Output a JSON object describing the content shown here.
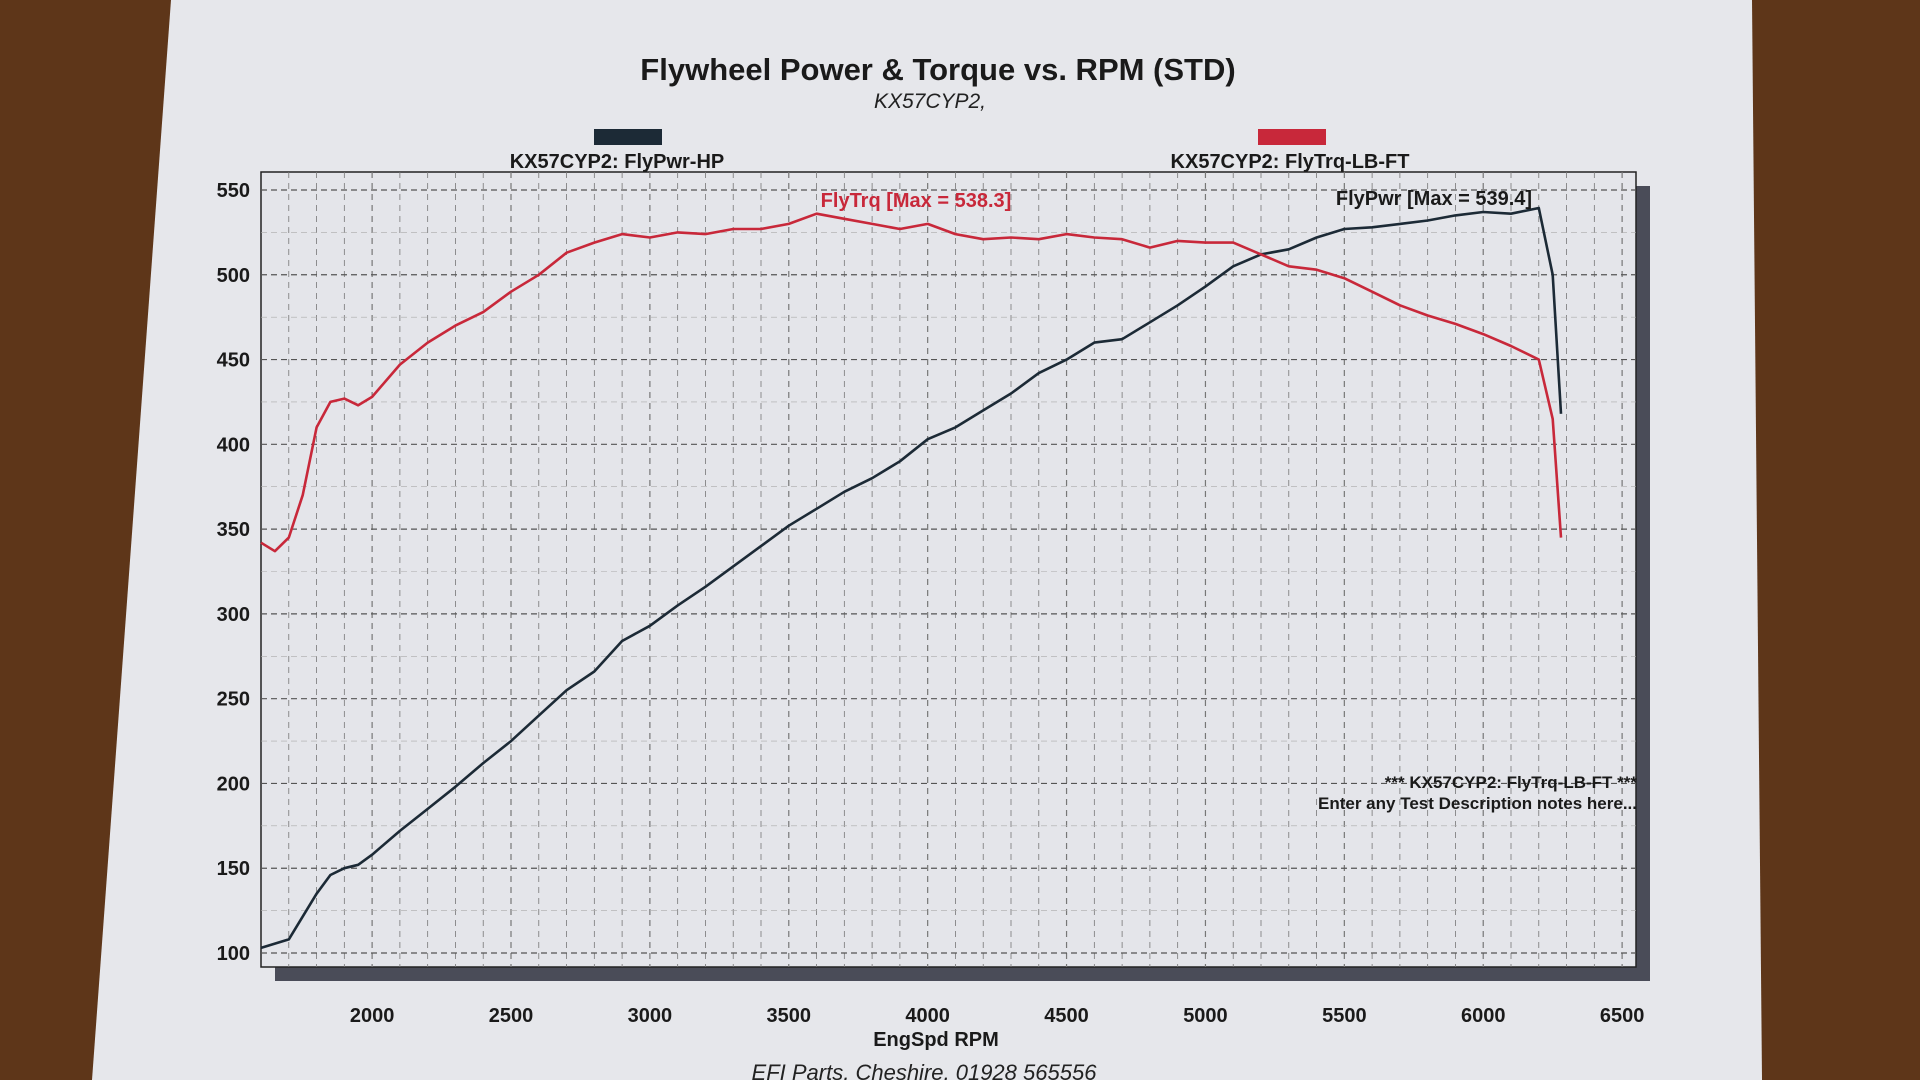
{
  "chart_data": {
    "type": "line",
    "title": "Flywheel Power & Torque vs. RPM (STD)",
    "subtitle": "KX57CYP2,",
    "xlabel": "EngSpd RPM",
    "ylabel": "",
    "xlim": [
      1600,
      6550
    ],
    "ylim": [
      100,
      550
    ],
    "x_ticks": [
      2000,
      2500,
      3000,
      3500,
      4000,
      4500,
      5000,
      5500,
      6000,
      6500
    ],
    "y_ticks": [
      100,
      150,
      200,
      250,
      300,
      350,
      400,
      450,
      500,
      550
    ],
    "grid": true,
    "legend_placement": "top",
    "series": [
      {
        "name": "KX57CYP2: FlyPwr-HP",
        "color": "#1c2a36",
        "annotation": "FlyPwr [Max = 539.4]",
        "x": [
          1600,
          1700,
          1800,
          1850,
          1900,
          1950,
          2000,
          2100,
          2200,
          2300,
          2400,
          2500,
          2600,
          2700,
          2800,
          2900,
          3000,
          3100,
          3200,
          3300,
          3400,
          3500,
          3600,
          3700,
          3800,
          3900,
          4000,
          4100,
          4200,
          4300,
          4400,
          4500,
          4600,
          4700,
          4800,
          4900,
          5000,
          5100,
          5200,
          5300,
          5400,
          5500,
          5600,
          5700,
          5800,
          5900,
          6000,
          6100,
          6200,
          6250,
          6280
        ],
        "values": [
          103,
          108,
          135,
          146,
          150,
          152,
          158,
          172,
          185,
          198,
          212,
          225,
          240,
          255,
          266,
          284,
          293,
          305,
          316,
          328,
          340,
          352,
          362,
          372,
          380,
          390,
          403,
          410,
          420,
          430,
          442,
          450,
          460,
          462,
          472,
          482,
          493,
          505,
          512,
          515,
          522,
          527,
          528,
          530,
          532,
          535,
          537,
          536,
          539.4,
          500,
          418
        ]
      },
      {
        "name": "KX57CYP2: FlyTrq-LB-FT",
        "color": "#c8283a",
        "annotation": "FlyTrq [Max = 538.3]",
        "x": [
          1600,
          1650,
          1700,
          1750,
          1800,
          1850,
          1900,
          1950,
          2000,
          2100,
          2200,
          2300,
          2400,
          2500,
          2600,
          2700,
          2800,
          2900,
          3000,
          3100,
          3200,
          3300,
          3400,
          3500,
          3600,
          3700,
          3800,
          3900,
          4000,
          4100,
          4200,
          4300,
          4400,
          4500,
          4600,
          4700,
          4800,
          4900,
          5000,
          5100,
          5200,
          5300,
          5400,
          5500,
          5600,
          5700,
          5800,
          5900,
          6000,
          6100,
          6200,
          6250,
          6280
        ],
        "values": [
          342,
          337,
          345,
          370,
          410,
          425,
          427,
          423,
          428,
          447,
          460,
          470,
          478,
          490,
          500,
          513,
          519,
          524,
          522,
          525,
          524,
          527,
          527,
          530,
          536,
          533,
          530,
          527,
          530,
          524,
          521,
          522,
          521,
          524,
          522,
          521,
          516,
          520,
          519,
          519,
          512,
          505,
          503,
          498,
          490,
          482,
          476,
          471,
          465,
          458,
          450,
          415,
          345
        ]
      }
    ],
    "notes": [
      "*** KX57CYP2: FlyTrq-LB-FT ***",
      "Enter any Test Description notes here..."
    ],
    "footer": "EFI Parts, Cheshire, 01928 565556"
  }
}
